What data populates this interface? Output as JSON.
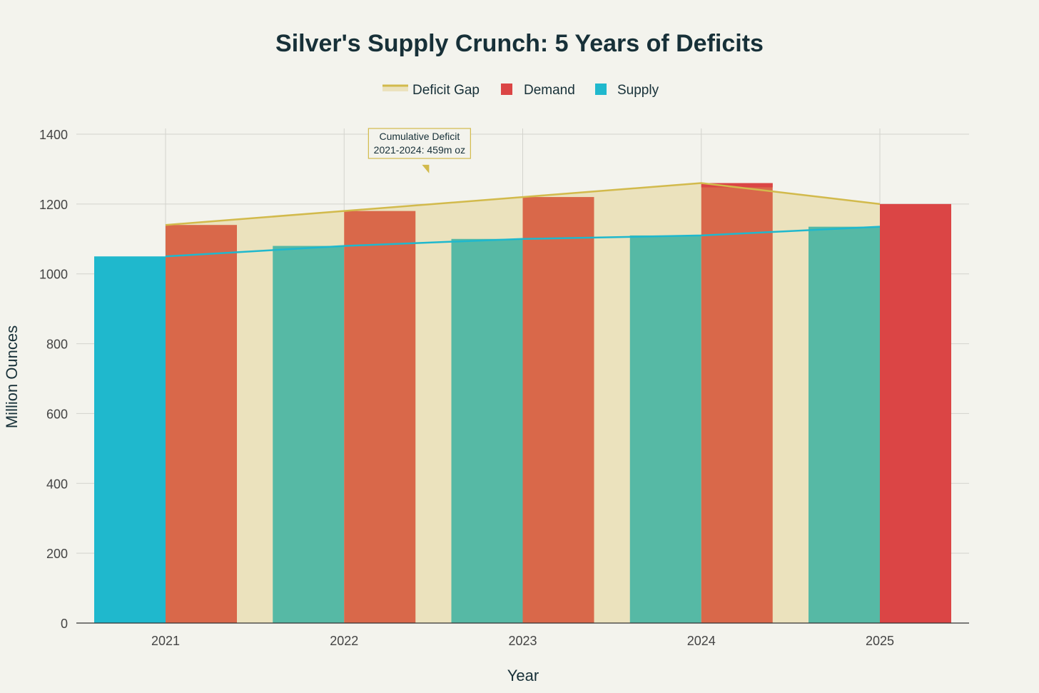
{
  "colors": {
    "background": "#f3f3ed",
    "supply": "#1fb8cd",
    "demand": "#db4545",
    "deficit_gap": "#d2ba4c",
    "supply_overlap": "#56b9a5",
    "demand_overlap": "#d9684a"
  },
  "chart_data": {
    "type": "bar",
    "title": "Silver's Supply Crunch: 5 Years of Deficits",
    "xlabel": "Year",
    "ylabel": "Million Ounces",
    "categories": [
      "2021",
      "2022",
      "2023",
      "2024",
      "2025"
    ],
    "ylim": [
      0,
      1400
    ],
    "yticks": [
      0,
      200,
      400,
      600,
      800,
      1000,
      1200,
      1400
    ],
    "grid": true,
    "legend_position": "top-center",
    "legend": [
      "Deficit Gap",
      "Demand",
      "Supply"
    ],
    "series": [
      {
        "name": "Supply",
        "type": "bar",
        "values": [
          1050,
          1080,
          1100,
          1110,
          1135
        ]
      },
      {
        "name": "Demand",
        "type": "bar",
        "values": [
          1140,
          1180,
          1220,
          1260,
          1200
        ]
      },
      {
        "name": "Deficit Gap",
        "type": "area",
        "upper": [
          1140,
          1180,
          1220,
          1260,
          1200
        ],
        "lower": [
          1050,
          1080,
          1100,
          1110,
          1135
        ]
      }
    ],
    "annotation": {
      "line1": "Cumulative Deficit",
      "line2": "2021-2024: 459m oz",
      "points_to_year": 2022.5,
      "points_to_value": 1300
    }
  }
}
